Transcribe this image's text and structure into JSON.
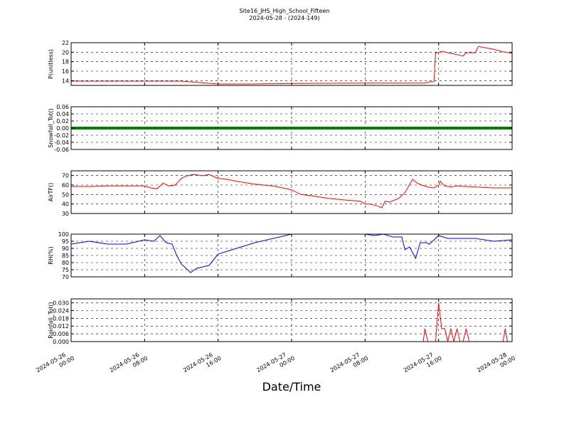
{
  "figure": {
    "title": "Site16_JHS_High_School_Fifteen",
    "subtitle": "2024-05-28 - (2024-149)",
    "xlabel": "Date/Time"
  },
  "chart_data": [
    {
      "type": "line",
      "ylabel": "P(unitless)",
      "ylim": [
        13,
        22
      ],
      "yticks": [
        14,
        16,
        18,
        20,
        22
      ],
      "xlim": [
        "2024-05-26 00:00",
        "2024-05-28 00:00"
      ],
      "xticks": [
        "2024-05-26 00:00",
        "2024-05-26 08:00",
        "2024-05-26 16:00",
        "2024-05-27 00:00",
        "2024-05-27 08:00",
        "2024-05-27 16:00",
        "2024-05-28 00:00"
      ],
      "grid": true,
      "series": [
        {
          "color": "#ff0000",
          "x": [
            "2024-05-26 00:00",
            "2024-05-26 04:00",
            "2024-05-26 08:00",
            "2024-05-26 12:00",
            "2024-05-26 14:00",
            "2024-05-26 16:00",
            "2024-05-26 20:00",
            "2024-05-27 00:00",
            "2024-05-27 08:00",
            "2024-05-27 12:00",
            "2024-05-27 14:30",
            "2024-05-27 15:00",
            "2024-05-27 15:30",
            "2024-05-27 15:40",
            "2024-05-27 16:00",
            "2024-05-27 16:20",
            "2024-05-27 17:00",
            "2024-05-27 18:00",
            "2024-05-27 18:40",
            "2024-05-27 19:00",
            "2024-05-27 19:30",
            "2024-05-27 20:00",
            "2024-05-27 20:20",
            "2024-05-27 22:00",
            "2024-05-27 23:00",
            "2024-05-28 00:00"
          ],
          "y": [
            13.9,
            13.9,
            13.9,
            13.9,
            13.6,
            13.3,
            13.3,
            13.4,
            13.5,
            13.5,
            13.5,
            13.7,
            13.8,
            19.9,
            19.9,
            20.2,
            19.9,
            19.5,
            19.2,
            19.9,
            19.9,
            19.9,
            21.2,
            20.6,
            20.1,
            19.8
          ]
        }
      ]
    },
    {
      "type": "line",
      "ylabel": "Snowfall_Tot()",
      "ylim": [
        -0.06,
        0.06
      ],
      "yticks": [
        -0.06,
        -0.04,
        -0.02,
        0.0,
        0.02,
        0.04,
        0.06
      ],
      "xlim": [
        "2024-05-26 00:00",
        "2024-05-28 00:00"
      ],
      "grid": true,
      "series": [
        {
          "color": "#008000",
          "x": [
            "2024-05-26 00:00",
            "2024-05-28 00:00"
          ],
          "y": [
            0,
            0
          ]
        }
      ]
    },
    {
      "type": "line",
      "ylabel": "AirTF()",
      "ylim": [
        30,
        75
      ],
      "yticks": [
        30,
        40,
        50,
        60,
        70
      ],
      "xlim": [
        "2024-05-26 00:00",
        "2024-05-28 00:00"
      ],
      "grid": true,
      "series": [
        {
          "color": "#ff0000",
          "x": [
            "2024-05-26 00:00",
            "2024-05-26 02:00",
            "2024-05-26 04:00",
            "2024-05-26 06:00",
            "2024-05-26 08:00",
            "2024-05-26 08:40",
            "2024-05-26 09:20",
            "2024-05-26 10:00",
            "2024-05-26 10:40",
            "2024-05-26 11:20",
            "2024-05-26 12:00",
            "2024-05-26 12:40",
            "2024-05-26 13:20",
            "2024-05-26 14:20",
            "2024-05-26 15:00",
            "2024-05-26 16:00",
            "2024-05-26 17:00",
            "2024-05-26 18:00",
            "2024-05-26 20:00",
            "2024-05-26 22:00",
            "2024-05-27 00:00",
            "2024-05-27 01:00",
            "2024-05-27 02:00",
            "2024-05-27 04:00",
            "2024-05-27 06:00",
            "2024-05-27 07:30",
            "2024-05-27 08:00",
            "2024-05-27 08:30",
            "2024-05-27 09:20",
            "2024-05-27 09:50",
            "2024-05-27 10:10",
            "2024-05-27 10:40",
            "2024-05-27 11:40",
            "2024-05-27 12:20",
            "2024-05-27 13:10",
            "2024-05-27 13:40",
            "2024-05-27 14:10",
            "2024-05-27 14:50",
            "2024-05-27 15:30",
            "2024-05-27 16:00",
            "2024-05-27 16:10",
            "2024-05-27 16:40",
            "2024-05-27 17:20",
            "2024-05-27 18:00",
            "2024-05-27 20:00",
            "2024-05-27 22:00",
            "2024-05-28 00:00"
          ],
          "y": [
            58.5,
            58.5,
            59,
            59,
            59,
            57,
            56,
            62,
            59,
            60,
            67,
            70,
            71,
            70,
            71,
            67,
            66,
            64,
            61,
            59,
            55,
            50,
            49,
            46,
            44,
            43,
            40,
            40,
            38,
            36,
            43,
            42,
            46,
            52,
            66,
            62,
            60,
            58,
            57,
            60,
            64,
            59,
            58,
            59,
            58,
            57,
            57
          ]
        }
      ]
    },
    {
      "type": "line",
      "ylabel": "RH(%)",
      "ylim": [
        70,
        100
      ],
      "yticks": [
        70,
        75,
        80,
        85,
        90,
        95,
        100
      ],
      "xlim": [
        "2024-05-26 00:00",
        "2024-05-28 00:00"
      ],
      "grid": true,
      "series": [
        {
          "color": "#0000ff",
          "x": [
            "2024-05-26 00:00",
            "2024-05-26 01:00",
            "2024-05-26 02:00",
            "2024-05-26 04:00",
            "2024-05-26 06:00",
            "2024-05-26 08:00",
            "2024-05-26 09:00",
            "2024-05-26 09:40",
            "2024-05-26 10:20",
            "2024-05-26 11:00",
            "2024-05-26 11:30",
            "2024-05-26 12:00",
            "2024-05-26 12:30",
            "2024-05-26 13:00",
            "2024-05-26 13:40",
            "2024-05-26 14:20",
            "2024-05-26 15:00",
            "2024-05-26 16:00",
            "2024-05-26 17:00",
            "2024-05-26 18:00",
            "2024-05-26 20:00",
            "2024-05-26 22:00",
            "2024-05-27 00:00",
            "2024-05-27 08:00",
            "2024-05-27 09:00",
            "2024-05-27 10:00",
            "2024-05-27 11:00",
            "2024-05-27 12:00",
            "2024-05-27 12:20",
            "2024-05-27 12:50",
            "2024-05-27 13:30",
            "2024-05-27 14:00",
            "2024-05-27 14:40",
            "2024-05-27 15:00",
            "2024-05-27 16:00",
            "2024-05-27 16:30",
            "2024-05-27 17:00",
            "2024-05-27 18:00",
            "2024-05-27 20:00",
            "2024-05-27 22:00",
            "2024-05-28 00:00"
          ],
          "y": [
            93,
            94,
            95,
            93,
            93,
            96,
            95,
            99,
            94,
            93,
            85,
            79,
            76,
            73,
            76,
            77,
            78,
            86,
            88,
            90,
            94,
            97,
            100,
            100,
            99,
            100,
            98,
            98,
            89,
            91,
            83,
            94,
            94,
            93,
            99,
            98,
            97,
            97,
            97,
            95,
            96
          ]
        }
      ]
    },
    {
      "type": "line",
      "ylabel": "Rainfall_Tot()",
      "ylim": [
        0,
        0.033
      ],
      "yticks": [
        0.0,
        0.006,
        0.012,
        0.018,
        0.024,
        0.03
      ],
      "xlim": [
        "2024-05-26 00:00",
        "2024-05-28 00:00"
      ],
      "grid": true,
      "series": [
        {
          "color": "#ff0000",
          "x": [
            "2024-05-26 00:00",
            "2024-05-27 14:20",
            "2024-05-27 14:30",
            "2024-05-27 14:50",
            "2024-05-27 15:40",
            "2024-05-27 16:00",
            "2024-05-27 16:20",
            "2024-05-27 16:40",
            "2024-05-27 17:00",
            "2024-05-27 17:20",
            "2024-05-27 17:40",
            "2024-05-27 18:00",
            "2024-05-27 18:20",
            "2024-05-27 18:40",
            "2024-05-27 19:00",
            "2024-05-27 19:20",
            "2024-05-27 23:00",
            "2024-05-27 23:15",
            "2024-05-27 23:30",
            "2024-05-28 00:00"
          ],
          "y": [
            0,
            0,
            0.01,
            0,
            0,
            0.03,
            0.01,
            0.01,
            0,
            0.01,
            0,
            0.01,
            0,
            0,
            0.01,
            0,
            0,
            0.01,
            0,
            0
          ]
        }
      ]
    }
  ]
}
